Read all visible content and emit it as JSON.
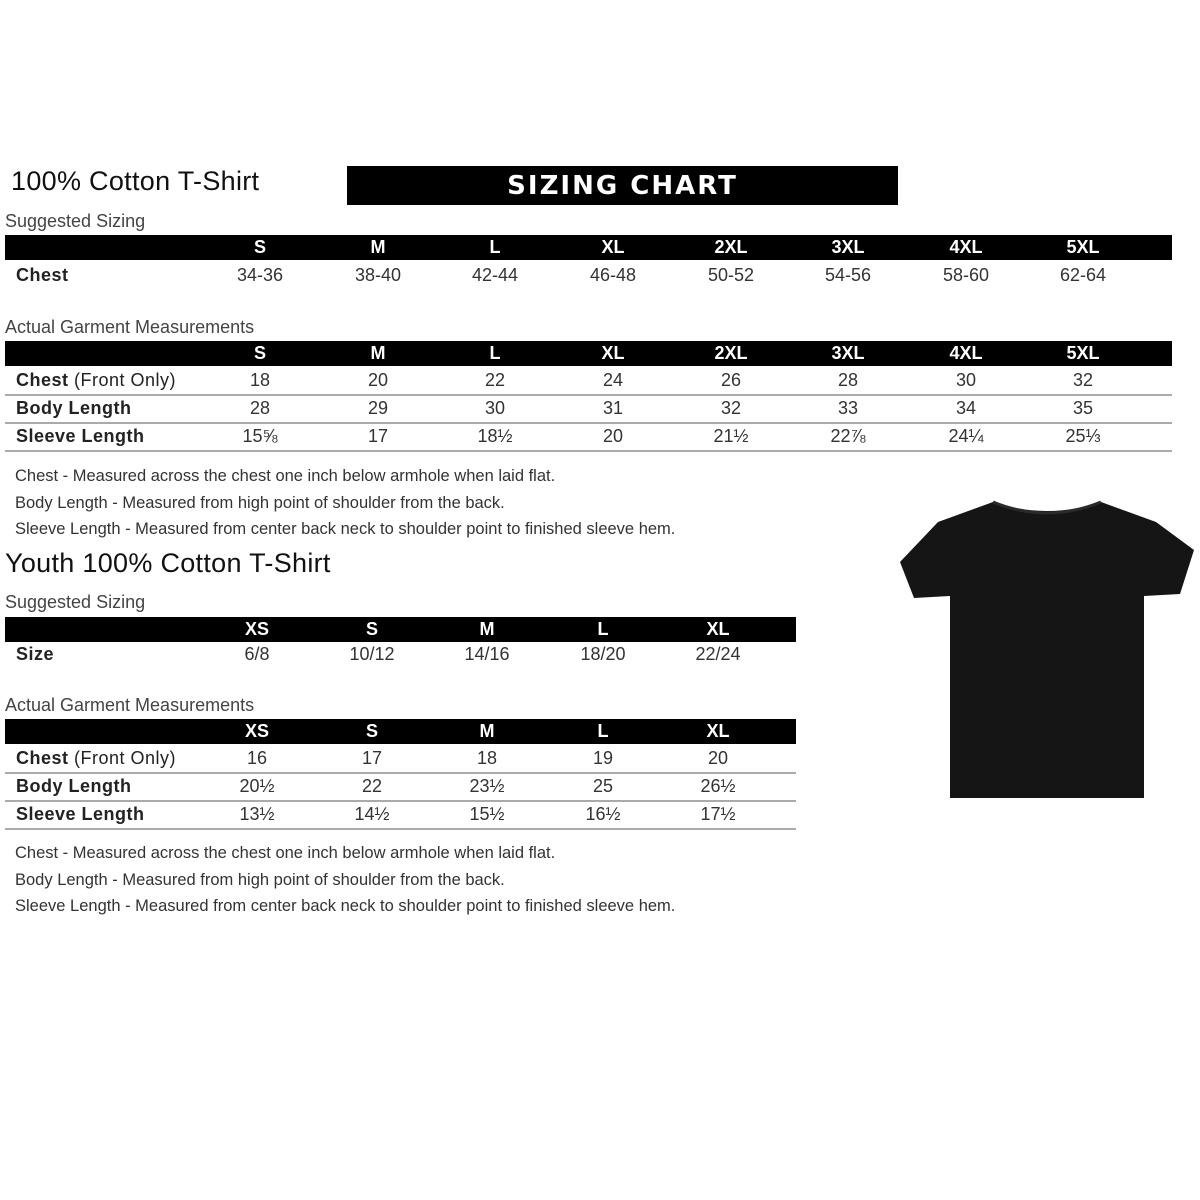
{
  "adult": {
    "title": "100% Cotton T-Shirt",
    "banner": "SIZING CHART",
    "suggested_label": "Suggested Sizing",
    "sizes": [
      "S",
      "M",
      "L",
      "XL",
      "2XL",
      "3XL",
      "4XL",
      "5XL"
    ],
    "suggested_rows": [
      {
        "label": "Chest",
        "values": [
          "34-36",
          "38-40",
          "42-44",
          "46-48",
          "50-52",
          "54-56",
          "58-60",
          "62-64"
        ]
      }
    ],
    "actual_label": "Actual Garment Measurements",
    "actual_rows": [
      {
        "label": "Chest",
        "label_extra": " (Front Only)",
        "values": [
          "18",
          "20",
          "22",
          "24",
          "26",
          "28",
          "30",
          "32"
        ]
      },
      {
        "label": "Body Length",
        "values": [
          "28",
          "29",
          "30",
          "31",
          "32",
          "33",
          "34",
          "35"
        ]
      },
      {
        "label": "Sleeve Length",
        "values": [
          "15⅝",
          "17",
          "18½",
          "20",
          "21½",
          "22⅞",
          "24¼",
          "25⅓"
        ]
      }
    ],
    "notes": [
      "Chest - Measured across the chest one inch below armhole when laid flat.",
      "Body Length - Measured from high point of shoulder from the back.",
      "Sleeve Length - Measured from center back neck to shoulder point to finished sleeve hem."
    ]
  },
  "youth": {
    "title": "Youth 100% Cotton T-Shirt",
    "suggested_label": "Suggested Sizing",
    "sizes": [
      "XS",
      "S",
      "M",
      "L",
      "XL"
    ],
    "suggested_rows": [
      {
        "label": "Size",
        "values": [
          "6/8",
          "10/12",
          "14/16",
          "18/20",
          "22/24"
        ]
      }
    ],
    "actual_label": "Actual Garment Measurements",
    "actual_rows": [
      {
        "label": "Chest",
        "label_extra": " (Front Only)",
        "values": [
          "16",
          "17",
          "18",
          "19",
          "20"
        ]
      },
      {
        "label": "Body Length",
        "values": [
          "20½",
          "22",
          "23½",
          "25",
          "26½"
        ]
      },
      {
        "label": "Sleeve Length",
        "values": [
          "13½",
          "14½",
          "15½",
          "16½",
          "17½"
        ]
      }
    ],
    "notes": [
      "Chest - Measured across the chest one inch below armhole when laid flat.",
      "Body Length - Measured from high point of shoulder from the back.",
      "Sleeve Length - Measured from center back neck to shoulder point to finished sleeve hem."
    ]
  },
  "image": {
    "icon": "tshirt-icon",
    "color": "#111111"
  }
}
